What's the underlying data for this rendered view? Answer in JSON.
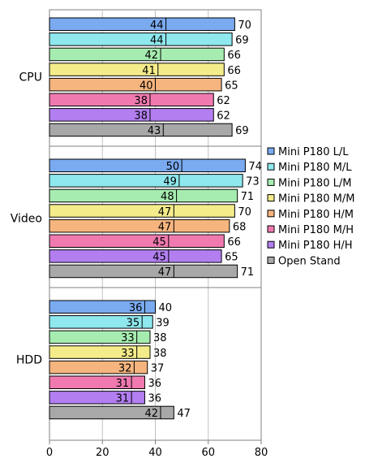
{
  "chart_data": {
    "type": "bar",
    "orientation": "horizontal",
    "grouping": "overlapped",
    "categories": [
      "CPU",
      "Video",
      "HDD"
    ],
    "series": [
      {
        "name": "Mini P180 L/L",
        "color": "#7aaaf0",
        "values": [
          70,
          74,
          40
        ],
        "inner_values": [
          44,
          50,
          36
        ]
      },
      {
        "name": "Mini P180 M/L",
        "color": "#8ee8ee",
        "values": [
          69,
          73,
          39
        ],
        "inner_values": [
          44,
          49,
          35
        ]
      },
      {
        "name": "Mini P180 L/M",
        "color": "#a6ecb0",
        "values": [
          66,
          71,
          38
        ],
        "inner_values": [
          42,
          48,
          33
        ]
      },
      {
        "name": "Mini P180 M/M",
        "color": "#f4ec8a",
        "values": [
          66,
          70,
          38
        ],
        "inner_values": [
          41,
          47,
          33
        ]
      },
      {
        "name": "Mini P180 H/M",
        "color": "#f6b47e",
        "values": [
          65,
          68,
          37
        ],
        "inner_values": [
          40,
          47,
          32
        ]
      },
      {
        "name": "Mini P180 M/H",
        "color": "#f07ab0",
        "values": [
          62,
          66,
          36
        ],
        "inner_values": [
          38,
          45,
          31
        ]
      },
      {
        "name": "Mini P180 H/H",
        "color": "#b27ef0",
        "values": [
          62,
          65,
          36
        ],
        "inner_values": [
          38,
          45,
          31
        ]
      },
      {
        "name": "Open Stand",
        "color": "#a8a8a8",
        "values": [
          69,
          71,
          47
        ],
        "inner_values": [
          43,
          47,
          42
        ]
      }
    ],
    "xlim": [
      0,
      80
    ],
    "xticks": [
      0,
      20,
      40,
      60,
      80
    ],
    "grid": true,
    "legend": "right"
  }
}
